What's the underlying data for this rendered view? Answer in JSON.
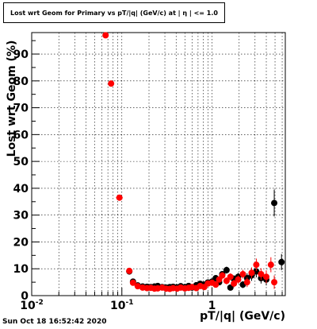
{
  "header": {
    "title": "Lost wrt Geom for Primary vs pT/|q| (GeV/c) at |  η | <= 1.0"
  },
  "footer": {
    "datestamp": "Sun Oct 18 16:52:42 2020"
  },
  "colors": {
    "primary_series": "#ff0000",
    "secondary_series": "#000000",
    "grid": "#000000"
  },
  "chart_data": {
    "type": "scatter",
    "title": "Lost wrt Geom for Primary vs pT/|q| (GeV/c) at |  η | <= 1.0",
    "xlabel": "pT/|q| (GeV/c)",
    "ylabel": "Lost  wrt  Geom (%)",
    "xscale": "log",
    "xlim": [
      0.01,
      6.5
    ],
    "ylim": [
      0,
      98
    ],
    "grid": true,
    "legend": "none",
    "x_ticks": [
      {
        "value": 0.01,
        "label": "10",
        "sup": "-2"
      },
      {
        "value": 0.1,
        "label": "10",
        "sup": "-1"
      },
      {
        "value": 1,
        "label": "1",
        "sup": ""
      }
    ],
    "y_ticks": [
      0,
      10,
      20,
      30,
      40,
      50,
      60,
      70,
      80,
      90
    ],
    "series": [
      {
        "color": "#000000",
        "points": [
          {
            "x": 0.121,
            "y": 9.0,
            "ey": 0.8
          },
          {
            "x": 0.133,
            "y": 5.2,
            "ey": 0.5
          },
          {
            "x": 0.15,
            "y": 3.8
          },
          {
            "x": 0.17,
            "y": 3.4
          },
          {
            "x": 0.19,
            "y": 3.3
          },
          {
            "x": 0.21,
            "y": 3.2
          },
          {
            "x": 0.23,
            "y": 3.4
          },
          {
            "x": 0.25,
            "y": 3.6
          },
          {
            "x": 0.28,
            "y": 3.2
          },
          {
            "x": 0.31,
            "y": 3.0
          },
          {
            "x": 0.34,
            "y": 3.2
          },
          {
            "x": 0.37,
            "y": 3.3
          },
          {
            "x": 0.41,
            "y": 3.1
          },
          {
            "x": 0.45,
            "y": 3.5
          },
          {
            "x": 0.5,
            "y": 3.2
          },
          {
            "x": 0.55,
            "y": 3.6
          },
          {
            "x": 0.6,
            "y": 3.0
          },
          {
            "x": 0.67,
            "y": 3.9
          },
          {
            "x": 0.74,
            "y": 4.4
          },
          {
            "x": 0.82,
            "y": 4.1
          },
          {
            "x": 0.9,
            "y": 4.9
          },
          {
            "x": 1.0,
            "y": 5.2
          },
          {
            "x": 1.1,
            "y": 6.5,
            "ey": 1.0
          },
          {
            "x": 1.2,
            "y": 5.0,
            "ey": 1.0
          },
          {
            "x": 1.3,
            "y": 8.0,
            "ey": 1.2
          },
          {
            "x": 1.45,
            "y": 9.5,
            "ey": 1.3
          },
          {
            "x": 1.6,
            "y": 3.0,
            "ey": 1.0
          },
          {
            "x": 1.75,
            "y": 6.2,
            "ey": 1.4
          },
          {
            "x": 1.95,
            "y": 7.0,
            "ey": 1.5
          },
          {
            "x": 2.2,
            "y": 4.1,
            "ey": 1.3
          },
          {
            "x": 2.45,
            "y": 6.5,
            "ey": 1.8
          },
          {
            "x": 2.75,
            "y": 7.5,
            "ey": 2.0
          },
          {
            "x": 3.1,
            "y": 9.0,
            "ey": 2.2
          },
          {
            "x": 3.5,
            "y": 6.5,
            "ey": 2.0
          },
          {
            "x": 4.0,
            "y": 6.0,
            "ey": 2.2
          },
          {
            "x": 4.9,
            "y": 34.5,
            "ey": 5.0
          },
          {
            "x": 5.9,
            "y": 12.5,
            "ey": 3.0
          }
        ]
      },
      {
        "color": "#ff0000",
        "points": [
          {
            "x": 0.066,
            "y": 97.0
          },
          {
            "x": 0.076,
            "y": 79.0
          },
          {
            "x": 0.094,
            "y": 36.5,
            "ex": 0.008
          },
          {
            "x": 0.121,
            "y": 9.2,
            "ey": 0.8
          },
          {
            "x": 0.133,
            "y": 4.8,
            "ey": 0.5
          },
          {
            "x": 0.15,
            "y": 3.5
          },
          {
            "x": 0.17,
            "y": 3.0
          },
          {
            "x": 0.19,
            "y": 2.8
          },
          {
            "x": 0.21,
            "y": 2.9
          },
          {
            "x": 0.23,
            "y": 2.6
          },
          {
            "x": 0.25,
            "y": 2.7
          },
          {
            "x": 0.28,
            "y": 3.0
          },
          {
            "x": 0.31,
            "y": 2.6
          },
          {
            "x": 0.34,
            "y": 2.5
          },
          {
            "x": 0.37,
            "y": 2.8
          },
          {
            "x": 0.41,
            "y": 2.6
          },
          {
            "x": 0.45,
            "y": 3.0
          },
          {
            "x": 0.5,
            "y": 2.7
          },
          {
            "x": 0.55,
            "y": 2.9
          },
          {
            "x": 0.6,
            "y": 3.2
          },
          {
            "x": 0.67,
            "y": 2.8
          },
          {
            "x": 0.74,
            "y": 3.6
          },
          {
            "x": 0.82,
            "y": 3.2
          },
          {
            "x": 0.9,
            "y": 4.5
          },
          {
            "x": 1.0,
            "y": 4.8,
            "ey": 0.8
          },
          {
            "x": 1.1,
            "y": 4.1,
            "ey": 1.0
          },
          {
            "x": 1.2,
            "y": 6.0,
            "ey": 1.1
          },
          {
            "x": 1.3,
            "y": 7.5,
            "ey": 1.2
          },
          {
            "x": 1.45,
            "y": 5.5,
            "ey": 1.3
          },
          {
            "x": 1.6,
            "y": 7.0,
            "ey": 1.3
          },
          {
            "x": 1.75,
            "y": 4.5,
            "ey": 1.4
          },
          {
            "x": 1.95,
            "y": 6.0,
            "ey": 1.5
          },
          {
            "x": 2.2,
            "y": 8.0,
            "ey": 1.6
          },
          {
            "x": 2.45,
            "y": 5.0,
            "ey": 1.8
          },
          {
            "x": 2.75,
            "y": 8.5,
            "ey": 2.0
          },
          {
            "x": 3.1,
            "y": 11.5,
            "ey": 2.3
          },
          {
            "x": 3.5,
            "y": 8.0,
            "ey": 2.2
          },
          {
            "x": 4.0,
            "y": 7.0,
            "ey": 2.4
          },
          {
            "x": 4.5,
            "y": 11.5,
            "ey": 2.8
          },
          {
            "x": 4.9,
            "y": 5.0,
            "ey": 2.5
          }
        ]
      }
    ]
  }
}
